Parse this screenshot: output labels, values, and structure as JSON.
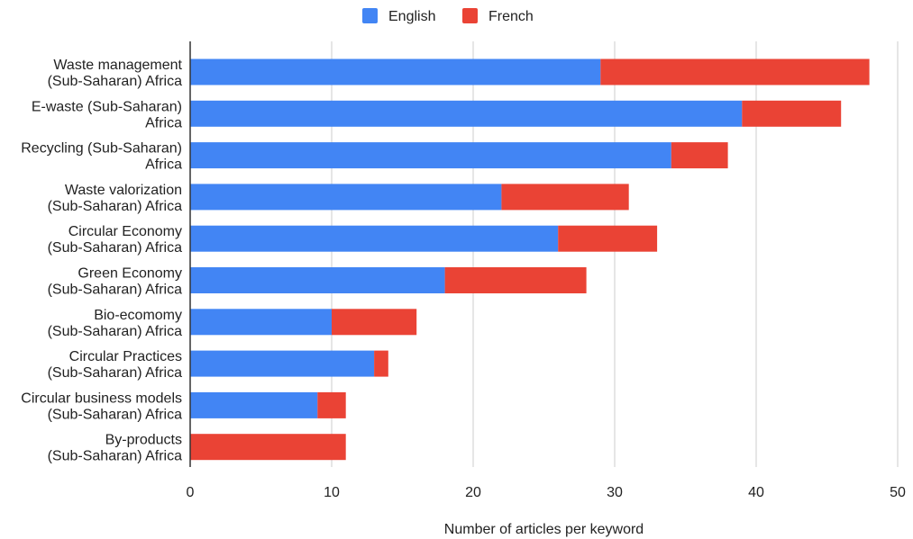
{
  "chart_data": {
    "type": "bar",
    "orientation": "horizontal",
    "stacked": true,
    "categories": [
      [
        "Waste management",
        "(Sub-Saharan) Africa"
      ],
      [
        "E-waste (Sub-Saharan)",
        "Africa"
      ],
      [
        "Recycling (Sub-Saharan)",
        "Africa"
      ],
      [
        "Waste valorization",
        "(Sub-Saharan) Africa"
      ],
      [
        "Circular Economy",
        "(Sub-Saharan) Africa"
      ],
      [
        "Green Economy",
        "(Sub-Saharan) Africa"
      ],
      [
        "Bio-ecomomy",
        "(Sub-Saharan) Africa"
      ],
      [
        "Circular Practices",
        "(Sub-Saharan) Africa"
      ],
      [
        "Circular business models",
        "(Sub-Saharan) Africa"
      ],
      [
        "By-products",
        "(Sub-Saharan) Africa"
      ]
    ],
    "series": [
      {
        "name": "English",
        "color": "#4285f4",
        "values": [
          29,
          39,
          34,
          22,
          26,
          18,
          10,
          13,
          9,
          0
        ]
      },
      {
        "name": "French",
        "color": "#ea4335",
        "values": [
          19,
          7,
          4,
          9,
          7,
          10,
          6,
          1,
          2,
          11
        ]
      }
    ],
    "xlabel": "Number of articles per keyword",
    "ylabel": "",
    "title": "",
    "xlim": [
      0,
      50
    ],
    "xticks": [
      "0",
      "10",
      "20",
      "30",
      "40",
      "50"
    ],
    "grid": "vertical",
    "legend_position": "top"
  }
}
